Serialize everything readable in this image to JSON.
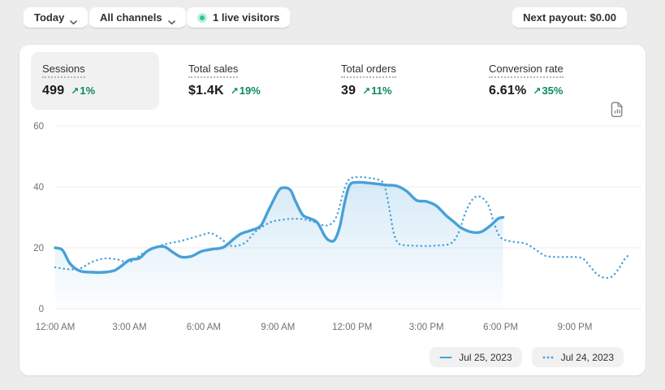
{
  "topbar": {
    "date_range_label": "Today",
    "channel_filter_label": "All channels",
    "live_visitors_label": "1 live visitors",
    "next_payout_label": "Next payout: $0.00"
  },
  "metrics": {
    "arrow_glyph": "↗",
    "items": [
      {
        "label": "Sessions",
        "value": "499",
        "change": "1%",
        "direction": "up",
        "selected": true
      },
      {
        "label": "Total sales",
        "value": "$1.4K",
        "change": "19%",
        "direction": "up",
        "selected": false
      },
      {
        "label": "Total orders",
        "value": "39",
        "change": "11%",
        "direction": "up",
        "selected": false
      },
      {
        "label": "Conversion rate",
        "value": "6.61%",
        "change": "35%",
        "direction": "up",
        "selected": false
      }
    ]
  },
  "chart_data": {
    "type": "line",
    "title": "",
    "metric_shown": "Sessions",
    "x_unit": "hour of day",
    "xlim": [
      0,
      23.7
    ],
    "ylim": [
      0,
      60
    ],
    "y_ticks": [
      0,
      20,
      40,
      60
    ],
    "x_tick_hours": [
      0,
      3,
      6,
      9,
      12,
      15,
      18,
      21
    ],
    "x_tick_labels": [
      "12:00 AM",
      "3:00 AM",
      "6:00 AM",
      "9:00 AM",
      "12:00 PM",
      "3:00 PM",
      "6:00 PM",
      "9:00 PM"
    ],
    "grid": "horizontal",
    "legend_position": "bottom-right",
    "series": [
      {
        "name": "Jul 25, 2023",
        "style": "solid",
        "area_fill": true,
        "points": [
          [
            0,
            20
          ],
          [
            0.3,
            19.2
          ],
          [
            0.6,
            14.8
          ],
          [
            1,
            12.4
          ],
          [
            1.5,
            12
          ],
          [
            2,
            12
          ],
          [
            2.4,
            12.6
          ],
          [
            2.7,
            14.2
          ],
          [
            3,
            16
          ],
          [
            3.4,
            16.6
          ],
          [
            3.7,
            18.8
          ],
          [
            4,
            20
          ],
          [
            4.4,
            20.4
          ],
          [
            4.8,
            18.3
          ],
          [
            5.1,
            17
          ],
          [
            5.5,
            17.2
          ],
          [
            5.9,
            18.8
          ],
          [
            6.3,
            19.5
          ],
          [
            6.8,
            20.2
          ],
          [
            7.2,
            22.8
          ],
          [
            7.5,
            24.6
          ],
          [
            7.9,
            25.7
          ],
          [
            8.3,
            27.2
          ],
          [
            8.6,
            32
          ],
          [
            9,
            38.4
          ],
          [
            9.2,
            39.7
          ],
          [
            9.5,
            39
          ],
          [
            9.7,
            35.5
          ],
          [
            10,
            30.8
          ],
          [
            10.3,
            29.6
          ],
          [
            10.6,
            28.2
          ],
          [
            10.9,
            23.8
          ],
          [
            11.1,
            22.3
          ],
          [
            11.3,
            22.7
          ],
          [
            11.5,
            27
          ],
          [
            11.7,
            35
          ],
          [
            11.9,
            40.6
          ],
          [
            12.2,
            41.5
          ],
          [
            12.6,
            41.3
          ],
          [
            13,
            41
          ],
          [
            13.4,
            40.6
          ],
          [
            13.8,
            40.3
          ],
          [
            14.2,
            38.6
          ],
          [
            14.6,
            35.6
          ],
          [
            15,
            35.2
          ],
          [
            15.4,
            33.8
          ],
          [
            15.8,
            30.6
          ],
          [
            16.1,
            28.6
          ],
          [
            16.4,
            26.6
          ],
          [
            16.8,
            25.2
          ],
          [
            17.2,
            25.2
          ],
          [
            17.6,
            27.4
          ],
          [
            17.9,
            29.6
          ],
          [
            18.1,
            30
          ]
        ]
      },
      {
        "name": "Jul 24, 2023",
        "style": "dotted",
        "area_fill": false,
        "points": [
          [
            0,
            13.6
          ],
          [
            0.5,
            13
          ],
          [
            1,
            13.2
          ],
          [
            1.5,
            15.4
          ],
          [
            2,
            16.5
          ],
          [
            2.5,
            16.2
          ],
          [
            3,
            15.3
          ],
          [
            3.5,
            18
          ],
          [
            4,
            20
          ],
          [
            4.5,
            21.3
          ],
          [
            5,
            22.1
          ],
          [
            5.5,
            23.2
          ],
          [
            6,
            24.4
          ],
          [
            6.3,
            24.8
          ],
          [
            6.7,
            23
          ],
          [
            7,
            21
          ],
          [
            7.3,
            20.6
          ],
          [
            7.7,
            21.8
          ],
          [
            8,
            24.6
          ],
          [
            8.3,
            26.6
          ],
          [
            8.7,
            28.4
          ],
          [
            9,
            29
          ],
          [
            9.5,
            29.5
          ],
          [
            10,
            29.4
          ],
          [
            10.5,
            28.4
          ],
          [
            10.9,
            27.3
          ],
          [
            11.2,
            28.2
          ],
          [
            11.4,
            31
          ],
          [
            11.6,
            37
          ],
          [
            11.8,
            41.6
          ],
          [
            12,
            43
          ],
          [
            12.4,
            43.2
          ],
          [
            12.8,
            42.8
          ],
          [
            13.1,
            42.2
          ],
          [
            13.3,
            40.5
          ],
          [
            13.5,
            33
          ],
          [
            13.65,
            26
          ],
          [
            13.8,
            22.2
          ],
          [
            14,
            21
          ],
          [
            14.5,
            20.7
          ],
          [
            15,
            20.6
          ],
          [
            15.5,
            20.8
          ],
          [
            16,
            21.5
          ],
          [
            16.3,
            25
          ],
          [
            16.6,
            32
          ],
          [
            16.9,
            36.2
          ],
          [
            17.2,
            36.7
          ],
          [
            17.5,
            34
          ],
          [
            17.7,
            29
          ],
          [
            17.9,
            24.6
          ],
          [
            18.1,
            22.8
          ],
          [
            18.5,
            22
          ],
          [
            19,
            21.4
          ],
          [
            19.4,
            19.5
          ],
          [
            19.8,
            17.4
          ],
          [
            20.3,
            17
          ],
          [
            20.8,
            17
          ],
          [
            21.3,
            16.6
          ],
          [
            21.6,
            14
          ],
          [
            21.9,
            11.3
          ],
          [
            22.2,
            10.2
          ],
          [
            22.5,
            10.6
          ],
          [
            22.8,
            13.5
          ],
          [
            23,
            16.2
          ],
          [
            23.2,
            17.8
          ]
        ]
      }
    ]
  },
  "colors": {
    "line_blue": "#47a1d8",
    "area_blue": "#6fb5e2",
    "success_green": "#0c8862",
    "live_dot_green": "#2bc78b",
    "grid_gray": "#ededf0",
    "axis_text_gray": "#6e7175",
    "page_bg": "#ececec",
    "card_bg": "#ffffff"
  }
}
